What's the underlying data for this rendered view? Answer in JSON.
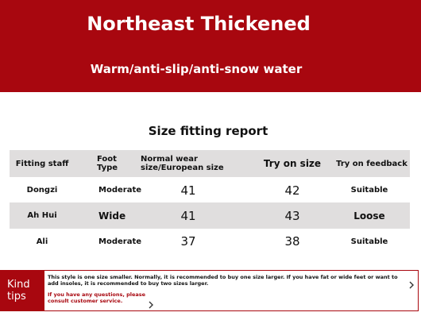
{
  "header": {
    "title": "Northeast Thickened",
    "subtitle": "Warm/anti-slip/anti-snow water"
  },
  "report_title": "Size fitting report",
  "table": {
    "columns": [
      "Fitting staff",
      "Foot Type",
      "Normal wear size/European size",
      "Try on size",
      "Try on feedback"
    ],
    "rows": [
      [
        "Dongzi",
        "Moderate",
        "41",
        "42",
        "Suitable"
      ],
      [
        "Ah Hui",
        "Wide",
        "41",
        "43",
        "Loose"
      ],
      [
        "Ali",
        "Moderate",
        "37",
        "38",
        "Suitable"
      ]
    ]
  },
  "tips": {
    "label": "Kind tips",
    "text": "This style is one size smaller. Normally, it is recommended to buy one size larger. If you have fat or wide feet or want to add insoles, it is recommended to buy two sizes larger.",
    "contact": "If you have any questions, please consult customer service."
  }
}
